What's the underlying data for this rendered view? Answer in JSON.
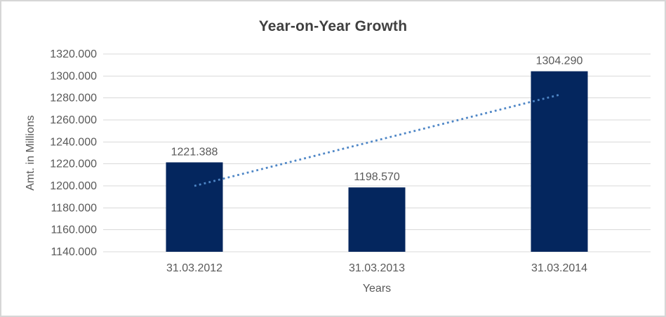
{
  "chart_data": {
    "type": "bar",
    "title": "Year-on-Year Growth",
    "xlabel": "Years",
    "ylabel": "Amt. in Millions",
    "categories": [
      "31.03.2012",
      "31.03.2013",
      "31.03.2014"
    ],
    "values": [
      1221.388,
      1198.57,
      1304.29
    ],
    "data_labels": [
      "1221.388",
      "1198.570",
      "1304.290"
    ],
    "y_tick_labels": [
      "1320.000",
      "1300.000",
      "1280.000",
      "1260.000",
      "1240.000",
      "1220.000",
      "1200.000",
      "1180.000",
      "1160.000",
      "1140.000"
    ],
    "ylim": [
      1140,
      1320
    ],
    "grid": true,
    "legend": false,
    "trendline": {
      "type": "linear",
      "style": "dotted"
    },
    "colors": {
      "bar": "#04265e",
      "trendline": "#4e86c6",
      "gridline": "#d9d9d9",
      "tick_text": "#595959",
      "data_label_text": "#595959",
      "title_text": "#3f3f3f",
      "frame_border": "#d6d6d6",
      "background": "#ffffff"
    }
  }
}
